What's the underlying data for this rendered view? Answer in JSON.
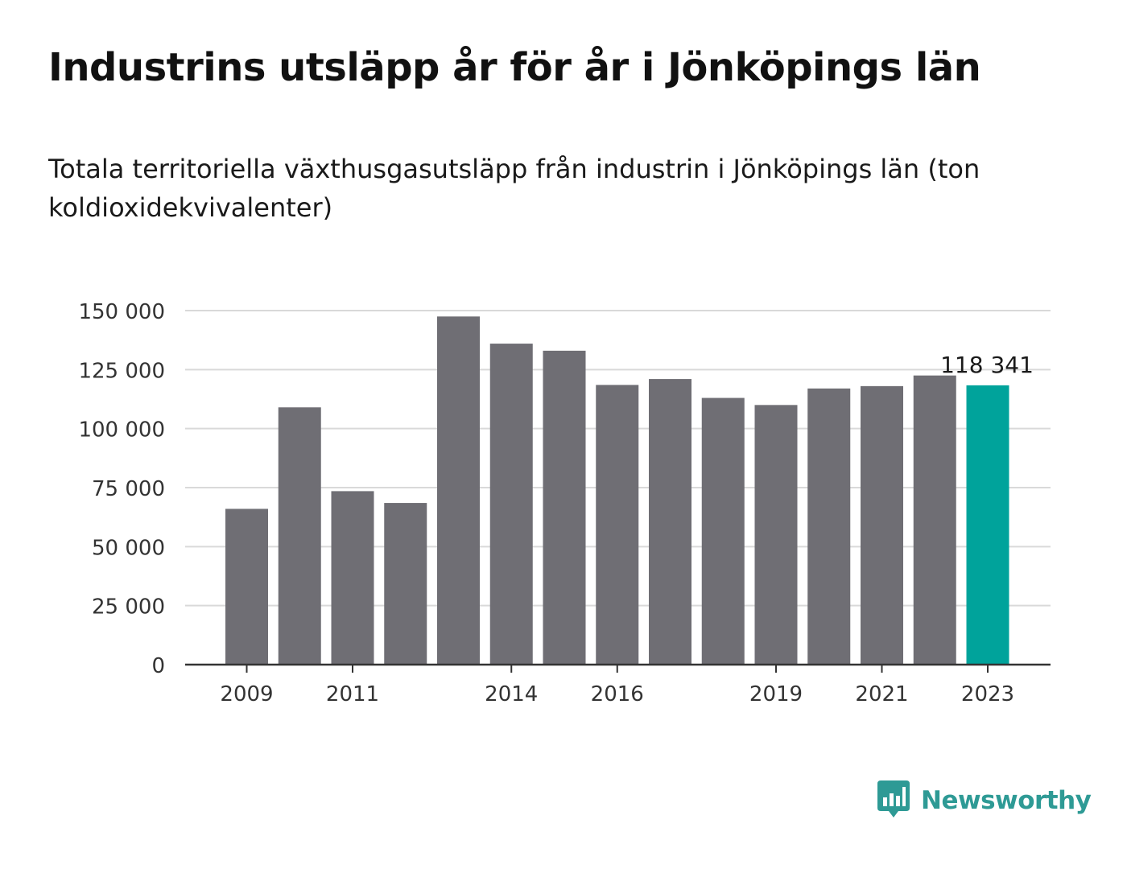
{
  "title": "Industrins utsläpp år för år i Jönköpings län",
  "subtitle": "Totala territoriella växthusgasutsläpp från industrin i Jönköpings län (ton koldioxidekvivalenter)",
  "brand": {
    "name": "Newsworthy",
    "icon": "newsworthy-bar-chart-logo-icon",
    "color": "#2e9a95"
  },
  "colors": {
    "bar": "#6f6e74",
    "highlight": "#00a39b",
    "grid": "#d9d9d9",
    "axis": "#333333",
    "text": "#333333"
  },
  "chart_data": {
    "type": "bar",
    "title": "Industrins utsläpp år för år i Jönköpings län",
    "subtitle": "Totala territoriella växthusgasutsläpp från industrin i Jönköpings län (ton koldioxidekvivalenter)",
    "xlabel": "",
    "ylabel": "",
    "categories": [
      "2009",
      "2010",
      "2011",
      "2012",
      "2013",
      "2014",
      "2015",
      "2016",
      "2017",
      "2018",
      "2019",
      "2020",
      "2021",
      "2022",
      "2023"
    ],
    "values": [
      66000,
      109000,
      73500,
      68500,
      147500,
      136000,
      133000,
      118500,
      121000,
      113000,
      110000,
      117000,
      118000,
      122500,
      118341
    ],
    "ylim": [
      0,
      150000
    ],
    "yticks": [
      0,
      25000,
      50000,
      75000,
      100000,
      125000,
      150000
    ],
    "ytick_labels": [
      "0",
      "25 000",
      "50 000",
      "75 000",
      "100 000",
      "125 000",
      "150 000"
    ],
    "xtick_labels": [
      "2009",
      "2011",
      "2014",
      "2016",
      "2019",
      "2021",
      "2023"
    ],
    "highlight_category": "2023",
    "annotations": [
      {
        "category": "2023",
        "text": "118 341"
      }
    ],
    "grid": true,
    "legend": "none"
  }
}
